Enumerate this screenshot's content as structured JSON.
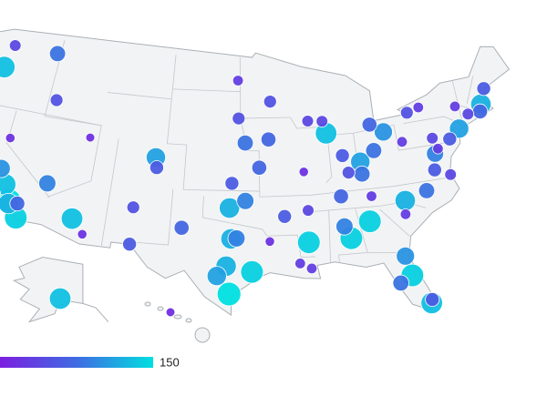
{
  "chart_data": {
    "type": "bubble-map",
    "lon": [
      -122.3,
      -117.4,
      -122.7,
      -116.2,
      -111.9,
      -121.5,
      -122.4,
      -121.9,
      -119.8,
      -119.0,
      -118.2,
      -118.2,
      -117.4,
      -117.2,
      -115.1,
      -112.1,
      -110.9,
      -106.6,
      -106.5,
      -105.0,
      -104.8,
      -97.5,
      -95.99,
      -97.3,
      -94.6,
      -96.0,
      -93.6,
      -93.3,
      -87.9,
      -87.6,
      -83.0,
      -86.2,
      -83.0,
      -81.7,
      -84.5,
      -80.0,
      -85.8,
      -86.8,
      -90.05,
      -90.2,
      -92.3,
      -96.8,
      -97.3,
      -97.7,
      -98.5,
      -95.4,
      -97.4,
      -90.1,
      -91.1,
      -90.2,
      -86.8,
      -84.4,
      -86.3,
      -81.7,
      -81.4,
      -82.5,
      -80.2,
      -80.1,
      -80.8,
      -78.6,
      -81.0,
      -77.4,
      -77.0,
      -76.6,
      -75.2,
      -74.0,
      -71.1,
      -71.4,
      -72.7,
      -73.8,
      -78.9,
      -77.6,
      -70.3,
      -76.9,
      -76.0,
      -83.9,
      -84.5,
      -89.4,
      -96.7,
      -96.8,
      -119.8,
      -119.7,
      -93.75,
      -101.9,
      -149.9,
      -157.9
    ],
    "lat": [
      47.6,
      47.7,
      45.5,
      43.6,
      40.8,
      38.6,
      37.8,
      37.3,
      36.7,
      35.4,
      34.05,
      33.8,
      33.95,
      32.7,
      36.2,
      33.45,
      32.2,
      35.1,
      31.8,
      39.7,
      38.8,
      35.5,
      36.15,
      37.7,
      39.1,
      41.3,
      41.6,
      44.98,
      43.0,
      41.9,
      42.3,
      39.8,
      39.96,
      41.5,
      39.1,
      40.4,
      38.25,
      36.2,
      35.15,
      38.6,
      34.7,
      32.8,
      32.75,
      30.3,
      29.4,
      29.8,
      27.8,
      29.95,
      30.45,
      32.3,
      33.5,
      33.75,
      32.4,
      30.3,
      28.5,
      27.95,
      25.8,
      26.1,
      35.2,
      35.8,
      34.0,
      37.5,
      38.9,
      39.3,
      39.95,
      40.7,
      42.4,
      41.8,
      41.8,
      42.7,
      42.9,
      43.2,
      43.7,
      40.3,
      36.85,
      35.96,
      38.0,
      43.1,
      43.5,
      46.9,
      39.5,
      34.4,
      32.5,
      33.6,
      61.2,
      21.3
    ],
    "values": [
      40,
      80,
      130,
      50,
      15,
      20,
      140,
      90,
      100,
      130,
      150,
      120,
      70,
      140,
      90,
      130,
      20,
      50,
      60,
      110,
      60,
      120,
      90,
      60,
      70,
      80,
      70,
      50,
      40,
      130,
      70,
      60,
      80,
      100,
      110,
      30,
      50,
      70,
      40,
      20,
      60,
      90,
      120,
      120,
      110,
      140,
      150,
      30,
      30,
      140,
      90,
      140,
      140,
      100,
      140,
      80,
      130,
      60,
      120,
      80,
      30,
      60,
      90,
      30,
      60,
      110,
      120,
      70,
      40,
      30,
      50,
      30,
      60,
      40,
      40,
      30,
      80,
      40,
      50,
      30,
      20,
      40,
      20,
      70,
      130,
      15
    ],
    "colorlim": [
      0,
      150
    ],
    "colorticks": [
      150
    ],
    "colors": [
      "#7b1fe0",
      "#3f6be2",
      "#00dfe0"
    ]
  }
}
